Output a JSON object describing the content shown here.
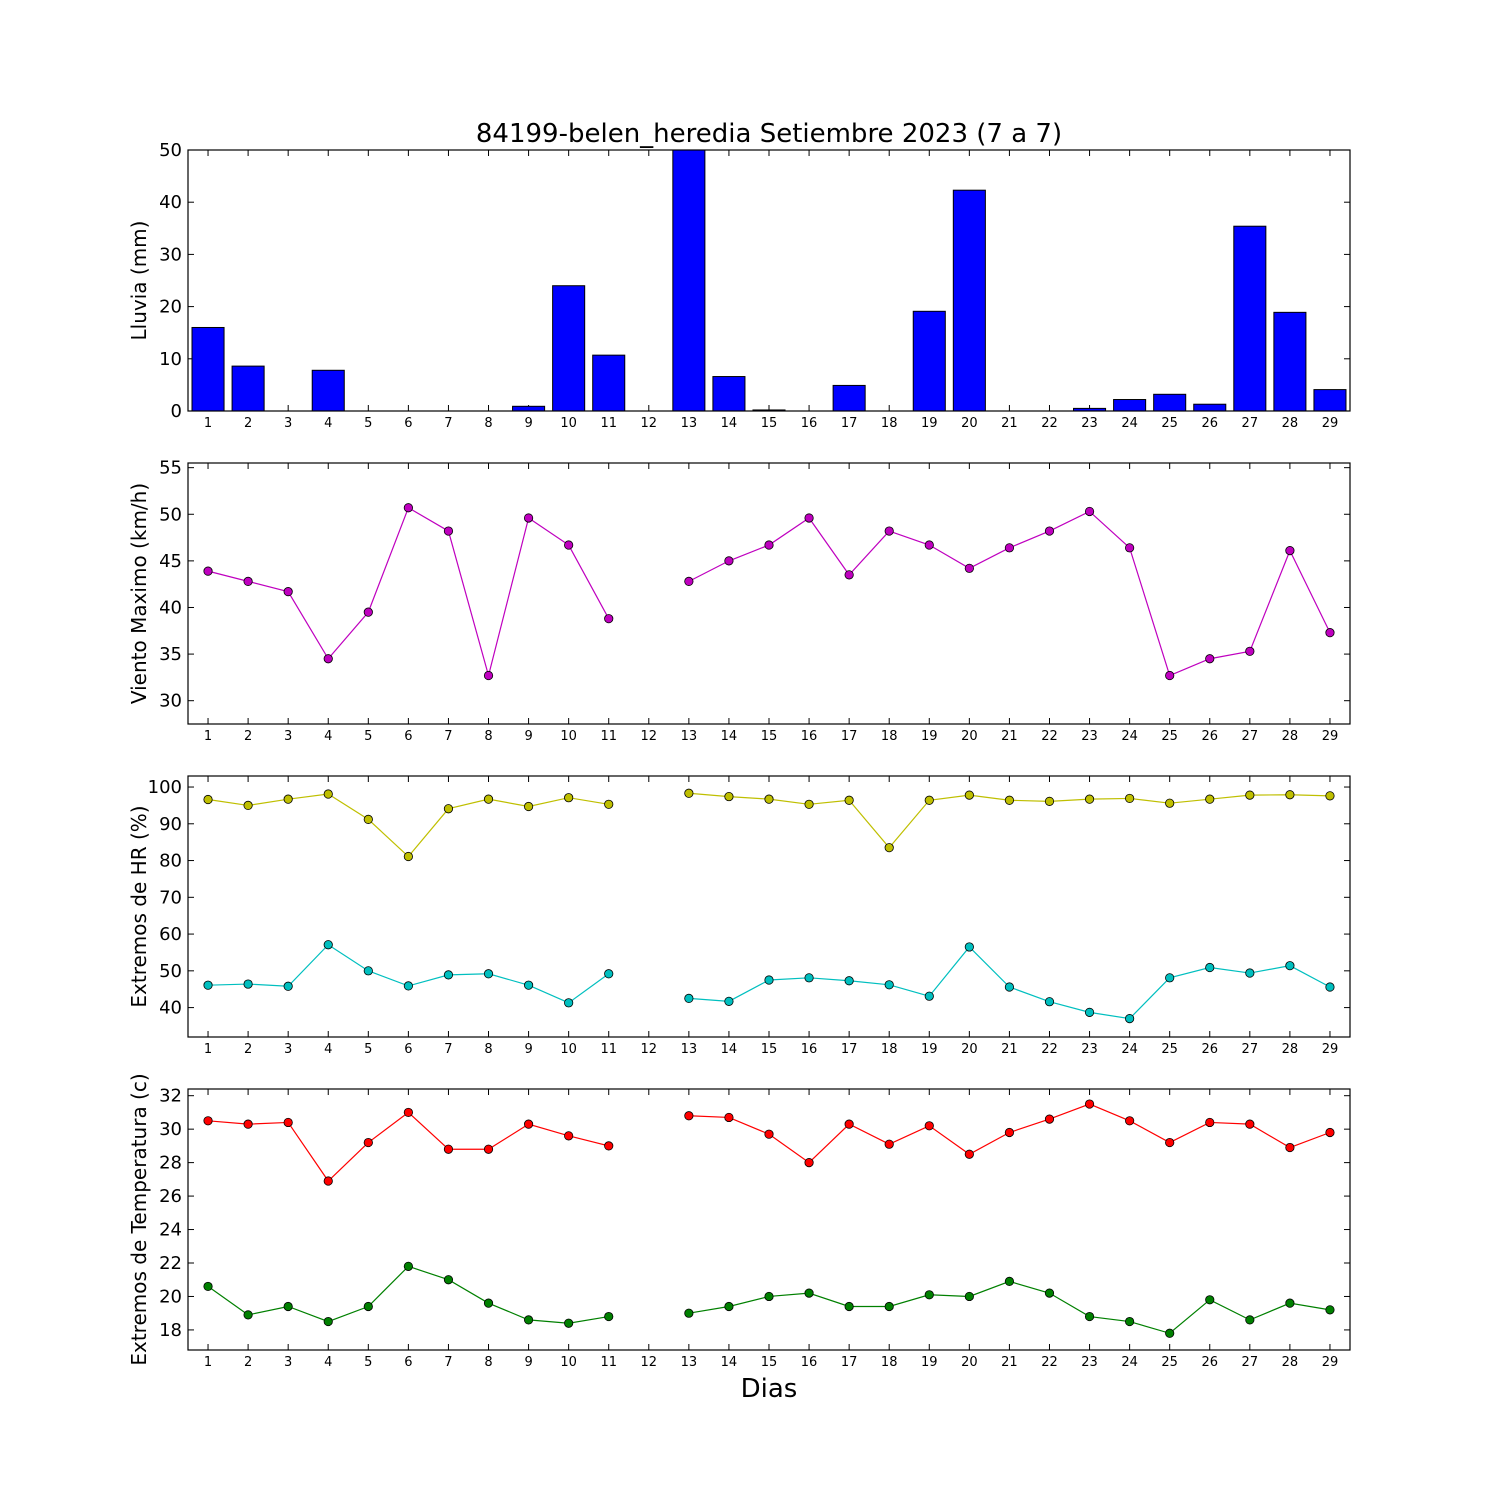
{
  "title": "84199-belen_heredia Setiembre 2023  (7 a 7)",
  "xlabel": "Dias",
  "days": [
    1,
    2,
    3,
    4,
    5,
    6,
    7,
    8,
    9,
    10,
    11,
    12,
    13,
    14,
    15,
    16,
    17,
    18,
    19,
    20,
    21,
    22,
    23,
    24,
    25,
    26,
    27,
    28,
    29
  ],
  "chart_data": [
    {
      "type": "bar",
      "ylabel": "Lluvia (mm)",
      "ylim": [
        0,
        50
      ],
      "yticks": [
        0,
        10,
        20,
        30,
        40,
        50
      ],
      "series": [
        {
          "color": "#0000ff",
          "values": [
            16.0,
            8.6,
            0,
            7.8,
            0,
            0,
            0,
            0,
            0.9,
            24.0,
            10.7,
            0,
            50.0,
            6.6,
            0.2,
            0,
            4.9,
            0,
            19.1,
            42.3,
            0,
            0,
            0.5,
            2.2,
            3.2,
            1.3,
            35.4,
            18.9,
            4.1
          ]
        }
      ]
    },
    {
      "type": "line",
      "ylabel": "Viento Maximo (km/h)",
      "ylim": [
        27.5,
        55.5
      ],
      "yticks": [
        30,
        35,
        40,
        45,
        50,
        55
      ],
      "series": [
        {
          "color": "#bf00bf",
          "values": [
            43.9,
            42.8,
            41.7,
            34.5,
            39.5,
            50.7,
            48.2,
            32.7,
            49.6,
            46.7,
            38.8,
            null,
            42.8,
            45.0,
            46.7,
            49.6,
            43.5,
            48.2,
            46.7,
            44.2,
            46.4,
            48.2,
            50.3,
            46.4,
            32.7,
            34.5,
            35.3,
            46.1,
            37.3
          ]
        }
      ]
    },
    {
      "type": "line",
      "ylabel": "Extremos de HR (%)",
      "ylim": [
        32,
        103
      ],
      "yticks": [
        40,
        50,
        60,
        70,
        80,
        90,
        100
      ],
      "series": [
        {
          "color": "#bfbf00",
          "values": [
            96.6,
            95.0,
            96.7,
            98.1,
            91.2,
            81.1,
            94.1,
            96.7,
            94.7,
            97.1,
            95.3,
            null,
            98.3,
            97.4,
            96.7,
            95.3,
            96.4,
            83.5,
            96.4,
            97.8,
            96.4,
            96.1,
            96.7,
            96.9,
            95.6,
            96.7,
            97.8,
            97.9,
            97.6
          ]
        },
        {
          "color": "#00bfbf",
          "values": [
            46.1,
            46.4,
            45.8,
            57.1,
            50.0,
            45.9,
            48.9,
            49.2,
            46.1,
            41.3,
            49.2,
            null,
            42.5,
            41.7,
            47.5,
            48.1,
            47.3,
            46.2,
            43.1,
            56.5,
            45.6,
            41.6,
            38.7,
            37.0,
            48.1,
            50.9,
            49.4,
            51.4,
            45.6
          ]
        }
      ]
    },
    {
      "type": "line",
      "ylabel": "Extremos de Temperatura (c)",
      "ylim": [
        16.8,
        32.4
      ],
      "yticks": [
        18,
        20,
        22,
        24,
        26,
        28,
        30,
        32
      ],
      "series": [
        {
          "color": "#ff0000",
          "values": [
            30.5,
            30.3,
            30.4,
            26.9,
            29.2,
            31.0,
            28.8,
            28.8,
            30.3,
            29.6,
            29.0,
            null,
            30.8,
            30.7,
            29.7,
            28.0,
            30.3,
            29.1,
            30.2,
            28.5,
            29.8,
            30.6,
            31.5,
            30.5,
            29.2,
            30.4,
            30.3,
            28.9,
            29.8
          ]
        },
        {
          "color": "#008000",
          "values": [
            20.6,
            18.9,
            19.4,
            18.5,
            19.4,
            21.8,
            21.0,
            19.6,
            18.6,
            18.4,
            18.8,
            null,
            19.0,
            19.4,
            20.0,
            20.2,
            19.4,
            19.4,
            20.1,
            20.0,
            20.9,
            20.2,
            18.8,
            18.5,
            17.8,
            19.8,
            18.6,
            19.6,
            19.2
          ]
        }
      ]
    }
  ]
}
